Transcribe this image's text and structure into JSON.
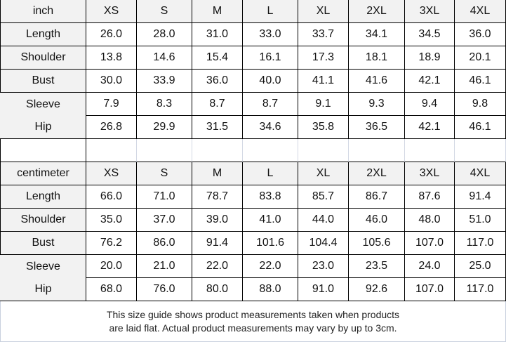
{
  "sizes": [
    "XS",
    "S",
    "M",
    "L",
    "XL",
    "2XL",
    "3XL",
    "4XL"
  ],
  "tables": [
    {
      "unit": "inch",
      "rows": [
        {
          "label": "Length",
          "values": [
            "26.0",
            "28.0",
            "31.0",
            "33.0",
            "33.7",
            "34.1",
            "34.5",
            "36.0"
          ]
        },
        {
          "label": "Shoulder",
          "values": [
            "13.8",
            "14.6",
            "15.4",
            "16.1",
            "17.3",
            "18.1",
            "18.9",
            "20.1"
          ]
        },
        {
          "label": "Bust",
          "values": [
            "30.0",
            "33.9",
            "36.0",
            "40.0",
            "41.1",
            "41.6",
            "42.1",
            "46.1"
          ]
        },
        {
          "label": "Sleeve",
          "values": [
            "7.9",
            "8.3",
            "8.7",
            "8.7",
            "9.1",
            "9.3",
            "9.4",
            "9.8"
          ]
        },
        {
          "label": "Hip",
          "values": [
            "26.8",
            "29.9",
            "31.5",
            "34.6",
            "35.8",
            "36.5",
            "42.1",
            "46.1"
          ]
        }
      ]
    },
    {
      "unit": "centimeter",
      "rows": [
        {
          "label": "Length",
          "values": [
            "66.0",
            "71.0",
            "78.7",
            "83.8",
            "85.7",
            "86.7",
            "87.6",
            "91.4"
          ]
        },
        {
          "label": "Shoulder",
          "values": [
            "35.0",
            "37.0",
            "39.0",
            "41.0",
            "44.0",
            "46.0",
            "48.0",
            "51.0"
          ]
        },
        {
          "label": "Bust",
          "values": [
            "76.2",
            "86.0",
            "91.4",
            "101.6",
            "104.4",
            "105.6",
            "107.0",
            "117.0"
          ]
        },
        {
          "label": "Sleeve",
          "values": [
            "20.0",
            "21.0",
            "22.0",
            "22.0",
            "23.0",
            "23.5",
            "24.0",
            "25.0"
          ]
        },
        {
          "label": "Hip",
          "values": [
            "68.0",
            "76.0",
            "80.0",
            "88.0",
            "91.0",
            "92.6",
            "107.0",
            "117.0"
          ]
        }
      ]
    }
  ],
  "footer": {
    "line1": "This size guide shows product measurements taken when products",
    "line2": "are laid flat. Actual product measurements may vary by up to 3cm."
  }
}
